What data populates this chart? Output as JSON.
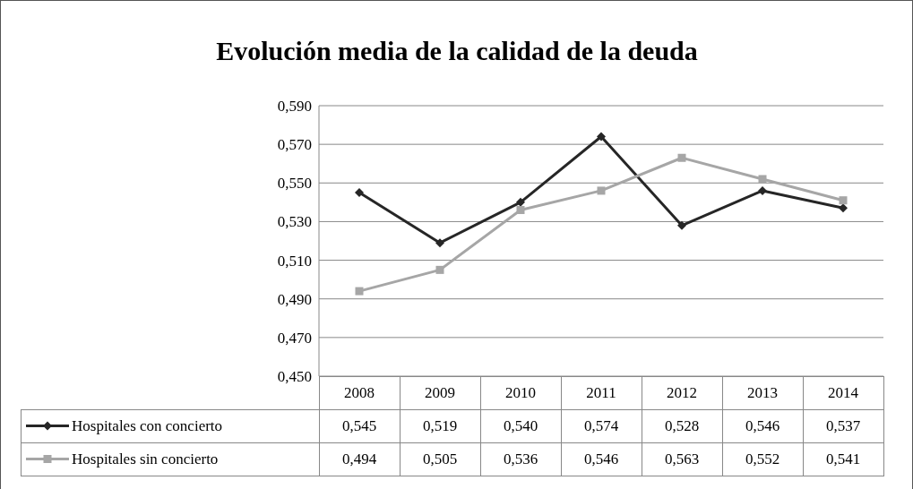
{
  "chart_data": {
    "type": "line",
    "title": "Evolución media de la calidad de la deuda",
    "categories": [
      "2008",
      "2009",
      "2010",
      "2011",
      "2012",
      "2013",
      "2014"
    ],
    "series": [
      {
        "name": "Hospitales con concierto",
        "color": "#262626",
        "marker": "diamond",
        "values": [
          0.545,
          0.519,
          0.54,
          0.574,
          0.528,
          0.546,
          0.537
        ],
        "value_labels": [
          "0,545",
          "0,519",
          "0,540",
          "0,574",
          "0,528",
          "0,546",
          "0,537"
        ]
      },
      {
        "name": "Hospitales sin concierto",
        "color": "#a6a6a6",
        "marker": "square",
        "values": [
          0.494,
          0.505,
          0.536,
          0.546,
          0.563,
          0.552,
          0.541
        ],
        "value_labels": [
          "0,494",
          "0,505",
          "0,536",
          "0,546",
          "0,563",
          "0,552",
          "0,541"
        ]
      }
    ],
    "ylim": [
      0.45,
      0.59
    ],
    "yticks": [
      {
        "value": 0.45,
        "label": "0,450"
      },
      {
        "value": 0.47,
        "label": "0,470"
      },
      {
        "value": 0.49,
        "label": "0,490"
      },
      {
        "value": 0.51,
        "label": "0,510"
      },
      {
        "value": 0.53,
        "label": "0,530"
      },
      {
        "value": 0.55,
        "label": "0,550"
      },
      {
        "value": 0.57,
        "label": "0,570"
      },
      {
        "value": 0.59,
        "label": "0,590"
      }
    ],
    "grid": "y",
    "legend": "bottom left"
  }
}
